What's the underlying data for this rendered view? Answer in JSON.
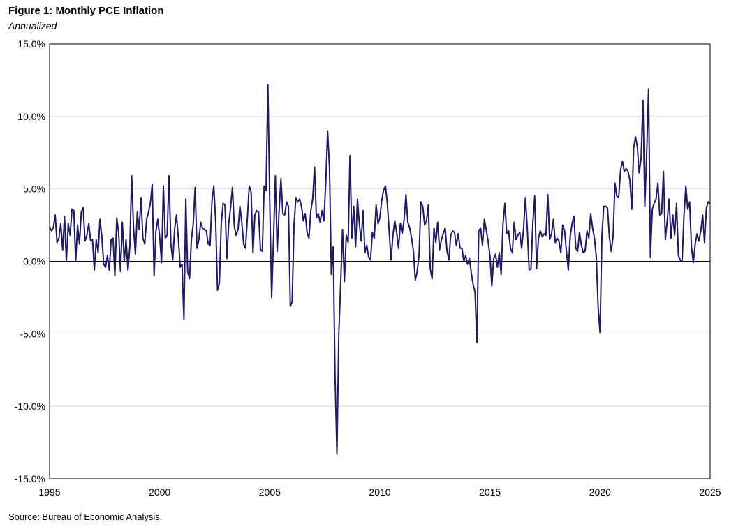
{
  "title": "Figure 1: Monthly PCE Inflation",
  "subtitle": "Annualized",
  "source": "Source: Bureau of Economic Analysis.",
  "line_color": "#1f1a66",
  "chart_data": {
    "type": "line",
    "title": "Figure 1: Monthly PCE Inflation",
    "subtitle": "Annualized",
    "xlabel": "",
    "ylabel": "",
    "xlim": [
      1995,
      2025
    ],
    "ylim": [
      -15,
      15
    ],
    "x_ticks": [
      1995,
      2000,
      2005,
      2010,
      2015,
      2020,
      2025
    ],
    "x_tick_labels": [
      "1995",
      "2000",
      "2005",
      "2010",
      "2015",
      "2020",
      "2025"
    ],
    "y_ticks": [
      -15,
      -10,
      -5,
      0,
      5,
      10,
      15
    ],
    "y_tick_labels": [
      "-15.0%",
      "-10.0%",
      "-5.0%",
      "0.0%",
      "5.0%",
      "10.0%",
      "15.0%"
    ],
    "grid": "horizontal",
    "legend": "none",
    "series": [
      {
        "values": [
          2.4,
          2.1,
          2.3,
          3.2,
          1.3,
          1.6,
          2.6,
          0.8,
          3.1,
          0.0,
          2.6,
          1.8,
          3.6,
          3.5,
          0.0,
          2.5,
          1.2,
          3.4,
          3.7,
          1.4,
          1.8,
          2.6,
          1.4,
          1.5,
          -0.6,
          1.5,
          0.6,
          2.9,
          1.7,
          -0.2,
          -0.4,
          0.4,
          -0.6,
          1.5,
          1.6,
          -1.0,
          3.0,
          2.0,
          -0.7,
          2.7,
          0.0,
          1.5,
          -0.6,
          1.0,
          5.9,
          2.3,
          0.5,
          3.4,
          2.2,
          4.4,
          1.6,
          1.2,
          2.9,
          3.4,
          4.0,
          5.3,
          -1.0,
          2.1,
          2.9,
          1.7,
          -0.1,
          5.2,
          1.6,
          1.8,
          5.9,
          1.2,
          0.1,
          2.2,
          3.2,
          1.6,
          -0.4,
          -0.2,
          -4.0,
          4.3,
          -0.7,
          -1.2,
          1.5,
          2.6,
          5.1,
          0.9,
          1.5,
          2.7,
          2.3,
          2.2,
          2.1,
          1.2,
          1.1,
          4.1,
          5.2,
          2.8,
          -2.0,
          -1.5,
          2.6,
          4.0,
          3.9,
          0.2,
          2.6,
          3.7,
          5.1,
          2.4,
          1.8,
          2.2,
          3.8,
          2.7,
          1.2,
          0.9,
          3.0,
          5.2,
          4.8,
          0.6,
          3.2,
          3.5,
          3.4,
          0.8,
          0.7,
          5.2,
          4.9,
          12.2,
          4.0,
          -2.5,
          1.5,
          5.9,
          0.7,
          3.5,
          5.7,
          3.3,
          3.2,
          4.1,
          3.8,
          -3.1,
          -2.8,
          2.5,
          4.4,
          4.1,
          4.3,
          3.8,
          2.8,
          3.3,
          2.0,
          1.6,
          3.5,
          4.3,
          6.5,
          3.0,
          3.3,
          2.7,
          3.5,
          2.8,
          5.4,
          9.0,
          6.5,
          -0.9,
          1.0,
          -8.0,
          -13.3,
          -5.0,
          -1.5,
          2.2,
          -1.4,
          1.8,
          1.3,
          7.3,
          1.6,
          3.8,
          1.0,
          4.3,
          2.6,
          1.4,
          3.5,
          0.6,
          1.1,
          0.3,
          0.1,
          2.0,
          1.6,
          3.9,
          2.6,
          3.0,
          4.2,
          4.9,
          5.2,
          4.0,
          2.1,
          0.1,
          1.8,
          2.8,
          2.0,
          0.9,
          2.6,
          1.9,
          2.9,
          4.6,
          2.7,
          2.3,
          1.6,
          0.7,
          -1.3,
          -0.7,
          0.4,
          4.1,
          3.8,
          2.5,
          2.8,
          3.9,
          -0.5,
          -1.2,
          2.3,
          1.3,
          2.7,
          0.8,
          1.5,
          1.9,
          2.3,
          0.7,
          0.1,
          1.8,
          2.1,
          2.0,
          1.1,
          1.9,
          0.9,
          0.9,
          0.0,
          0.4,
          -0.2,
          0.2,
          -0.8,
          -1.6,
          -2.1,
          -5.6,
          2.1,
          2.3,
          1.1,
          2.9,
          2.2,
          1.4,
          0.4,
          -1.7,
          0.2,
          0.5,
          -0.4,
          0.6,
          -0.9,
          2.6,
          4.0,
          1.9,
          2.1,
          0.9,
          0.6,
          2.7,
          1.5,
          1.8,
          2.0,
          0.9,
          2.2,
          4.4,
          2.3,
          -0.6,
          -0.5,
          2.7,
          4.5,
          -0.5,
          1.6,
          2.1,
          1.7,
          1.9,
          1.8,
          4.6,
          1.5,
          1.9,
          2.9,
          1.3,
          1.6,
          1.4,
          0.6,
          2.5,
          2.1,
          0.7,
          -0.6,
          1.7,
          2.6,
          3.1,
          0.9,
          0.7,
          2.0,
          1.1,
          0.6,
          0.7,
          2.1,
          1.6,
          3.3,
          2.3,
          1.6,
          0.3,
          -3.2,
          -4.9,
          1.7,
          3.8,
          3.8,
          3.7,
          1.7,
          0.7,
          1.7,
          5.4,
          4.5,
          4.4,
          6.3,
          6.9,
          6.2,
          6.4,
          6.2,
          5.6,
          3.6,
          7.8,
          8.6,
          7.9,
          6.1,
          7.1,
          11.1,
          3.8,
          7.5,
          11.9,
          0.3,
          3.6,
          4.0,
          4.3,
          5.4,
          3.2,
          3.3,
          6.2,
          1.5,
          2.8,
          4.3,
          1.6,
          3.2,
          1.8,
          4.0,
          0.4,
          0.1,
          0.0,
          3.2,
          5.2,
          3.6,
          4.1,
          1.0,
          -0.1,
          1.2,
          1.9,
          1.4,
          2.1,
          3.2,
          1.3,
          3.7,
          4.1,
          4.0
        ]
      }
    ]
  }
}
